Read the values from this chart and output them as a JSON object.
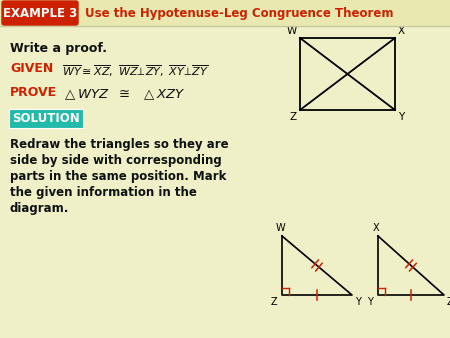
{
  "bg_color": "#f0f0c8",
  "header_stripe_color": "#e8e8b0",
  "header_bg": "#cc2200",
  "header_text": "EXAMPLE 3",
  "header_title": "Use the Hypotenuse-Leg Congruence Theorem",
  "header_title_color": "#cc2200",
  "write_proof": "Write a proof.",
  "given_label": "GIVEN",
  "prove_label": "PROVE",
  "solution_label": "SOLUTION",
  "solution_bg": "#22bbaa",
  "body_lines": [
    "Redraw the triangles so they are",
    "side by side with corresponding",
    "parts in the same position. Mark",
    "the given information in the",
    "diagram."
  ],
  "red_color": "#cc2200",
  "cyan_color": "#22bbaa",
  "black_color": "#111111",
  "white_color": "#ffffff",
  "figw": 4.5,
  "figh": 3.38,
  "dpi": 100
}
